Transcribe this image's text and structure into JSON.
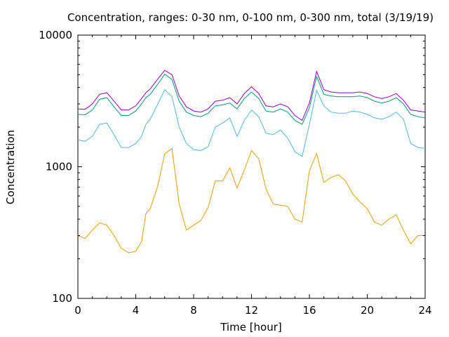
{
  "chart_data": {
    "type": "line",
    "title": "Concentration, ranges: 0-30 nm, 0-100 nm, 0-300 nm, total (3/19/19)",
    "xlabel": "Time [hour]",
    "ylabel": "Concentration",
    "xlim": [
      0,
      24
    ],
    "ylim": [
      100,
      10000
    ],
    "yscale": "log",
    "grid": false,
    "legend": "none",
    "x_ticks": [
      0,
      4,
      8,
      12,
      16,
      20,
      24
    ],
    "y_ticks": [
      100,
      1000,
      10000
    ],
    "x_tick_labels": [
      "0",
      "4",
      "8",
      "12",
      "16",
      "20",
      "24"
    ],
    "y_tick_labels": [
      "100",
      "1000",
      "10000"
    ],
    "series": [
      {
        "color": "#e69f00",
        "x": [
          0,
          0.5,
          1,
          1.5,
          2,
          2.5,
          3,
          3.5,
          4,
          4.4,
          4.7,
          5,
          5.5,
          6,
          6.5,
          7,
          7.5,
          8,
          8.5,
          9,
          9.5,
          10,
          10.5,
          11,
          11.5,
          12,
          12.5,
          13,
          13.5,
          14,
          14.5,
          15,
          15.5,
          16,
          16.5,
          17,
          17.5,
          18,
          18.5,
          19,
          19.5,
          20,
          20.5,
          21,
          21.5,
          22,
          22.5,
          23,
          23.5,
          24
        ],
        "y": [
          300,
          285,
          330,
          375,
          360,
          300,
          240,
          222,
          228,
          270,
          440,
          480,
          700,
          1250,
          1380,
          520,
          330,
          360,
          390,
          490,
          780,
          780,
          980,
          690,
          940,
          1330,
          1150,
          680,
          520,
          510,
          500,
          400,
          380,
          930,
          1260,
          760,
          830,
          870,
          780,
          620,
          540,
          480,
          380,
          360,
          400,
          430,
          330,
          260,
          300,
          300
        ]
      },
      {
        "color": "#56b4e9",
        "x": [
          0,
          0.5,
          1,
          1.5,
          2,
          2.5,
          3,
          3.5,
          4,
          4.4,
          4.7,
          5,
          5.5,
          6,
          6.5,
          7,
          7.5,
          8,
          8.5,
          9,
          9.5,
          10,
          10.5,
          11,
          11.5,
          12,
          12.5,
          13,
          13.5,
          14,
          14.5,
          15,
          15.5,
          16,
          16.5,
          17,
          17.5,
          18,
          18.5,
          19,
          19.5,
          20,
          20.5,
          21,
          21.5,
          22,
          22.5,
          23,
          23.5,
          24
        ],
        "y": [
          1600,
          1560,
          1700,
          2100,
          2150,
          1750,
          1400,
          1400,
          1500,
          1700,
          2100,
          2300,
          2950,
          3850,
          3400,
          2000,
          1500,
          1350,
          1330,
          1420,
          2000,
          2150,
          2350,
          1700,
          2250,
          2700,
          2400,
          1800,
          1750,
          1900,
          1650,
          1300,
          1200,
          2100,
          3800,
          2900,
          2600,
          2550,
          2550,
          2650,
          2600,
          2500,
          2350,
          2300,
          2400,
          2600,
          2300,
          1500,
          1400,
          1380
        ]
      },
      {
        "color": "#009e73",
        "x": [
          0,
          0.5,
          1,
          1.5,
          2,
          2.5,
          3,
          3.5,
          4,
          4.4,
          4.7,
          5,
          5.5,
          6,
          6.5,
          7,
          7.5,
          8,
          8.5,
          9,
          9.5,
          10,
          10.5,
          11,
          11.5,
          12,
          12.5,
          13,
          13.5,
          14,
          14.5,
          15,
          15.5,
          16,
          16.5,
          17,
          17.5,
          18,
          18.5,
          19,
          19.5,
          20,
          20.5,
          21,
          21.5,
          22,
          22.5,
          23,
          23.5,
          24
        ],
        "y": [
          2500,
          2480,
          2700,
          3250,
          3350,
          2850,
          2450,
          2450,
          2650,
          3000,
          3350,
          3550,
          4200,
          5050,
          4600,
          3150,
          2600,
          2450,
          2400,
          2550,
          2900,
          2950,
          3050,
          2750,
          3300,
          3700,
          3300,
          2650,
          2600,
          2750,
          2600,
          2250,
          2100,
          2800,
          4850,
          3550,
          3450,
          3400,
          3400,
          3400,
          3450,
          3350,
          3150,
          3050,
          3150,
          3350,
          3000,
          2500,
          2400,
          2350
        ]
      },
      {
        "color": "#9400d3",
        "x": [
          0,
          0.5,
          1,
          1.5,
          2,
          2.5,
          3,
          3.5,
          4,
          4.4,
          4.7,
          5,
          5.5,
          6,
          6.5,
          7,
          7.5,
          8,
          8.5,
          9,
          9.5,
          10,
          10.5,
          11,
          11.5,
          12,
          12.5,
          13,
          13.5,
          14,
          14.5,
          15,
          15.5,
          16,
          16.5,
          17,
          17.5,
          18,
          18.5,
          19,
          19.5,
          20,
          20.5,
          21,
          21.5,
          22,
          22.5,
          23,
          23.5,
          24
        ],
        "y": [
          2750,
          2730,
          3000,
          3550,
          3650,
          3150,
          2700,
          2700,
          2900,
          3300,
          3650,
          3900,
          4600,
          5400,
          5000,
          3450,
          2850,
          2650,
          2600,
          2750,
          3150,
          3200,
          3350,
          3000,
          3600,
          4050,
          3600,
          2900,
          2850,
          3000,
          2850,
          2450,
          2250,
          3050,
          5300,
          3850,
          3700,
          3650,
          3650,
          3650,
          3700,
          3600,
          3400,
          3300,
          3400,
          3600,
          3200,
          2700,
          2650,
          2600
        ]
      }
    ]
  }
}
